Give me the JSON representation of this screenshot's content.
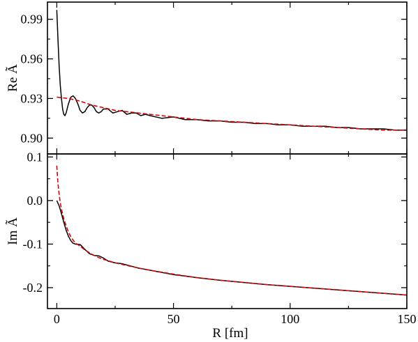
{
  "chart_data": [
    {
      "type": "line",
      "panel": "top",
      "xlabel": "",
      "ylabel": "Re Ã",
      "xlim": [
        -4,
        150
      ],
      "ylim": [
        0.888,
        1.003
      ],
      "yticks": [
        0.9,
        0.93,
        0.96,
        0.99
      ],
      "ytick_labels": [
        "0.90",
        "0.93",
        "0.96",
        "0.99"
      ],
      "grid": false,
      "series": [
        {
          "style": "solid",
          "color": "#000000",
          "x": [
            0.0,
            0.5,
            1.0,
            1.5,
            2.0,
            2.5,
            3.0,
            3.5,
            4.0,
            5.0,
            6.0,
            7.0,
            8.0,
            9.0,
            10.0,
            11.0,
            12.0,
            13.0,
            14.0,
            15.0,
            16.0,
            17.0,
            18.0,
            19.0,
            20.0,
            22.0,
            24.0,
            26.0,
            28.0,
            30.0,
            32.0,
            34.0,
            36.0,
            38.0,
            40.0,
            45.0,
            50.0,
            55.0,
            60.0,
            65.0,
            70.0,
            75.0,
            80.0,
            85.0,
            90.0,
            95.0,
            100.0,
            105.0,
            110.0,
            115.0,
            120.0,
            125.0,
            130.0,
            135.0,
            140.0,
            145.0,
            150.0
          ],
          "y": [
            0.997,
            0.975,
            0.955,
            0.94,
            0.93,
            0.922,
            0.918,
            0.917,
            0.919,
            0.926,
            0.931,
            0.932,
            0.93,
            0.926,
            0.921,
            0.919,
            0.92,
            0.923,
            0.925,
            0.925,
            0.923,
            0.92,
            0.919,
            0.92,
            0.922,
            0.922,
            0.919,
            0.92,
            0.921,
            0.918,
            0.919,
            0.919,
            0.917,
            0.918,
            0.917,
            0.915,
            0.916,
            0.914,
            0.914,
            0.913,
            0.913,
            0.912,
            0.912,
            0.911,
            0.911,
            0.91,
            0.91,
            0.909,
            0.909,
            0.909,
            0.908,
            0.908,
            0.907,
            0.907,
            0.907,
            0.906,
            0.906
          ]
        },
        {
          "style": "dashed",
          "color": "#dd0000",
          "x": [
            0.0,
            5.0,
            10.0,
            15.0,
            20.0,
            25.0,
            30.0,
            40.0,
            50.0,
            60.0,
            70.0,
            80.0,
            90.0,
            100.0,
            110.0,
            120.0,
            130.0,
            140.0,
            150.0
          ],
          "y": [
            0.931,
            0.93,
            0.928,
            0.925,
            0.923,
            0.921,
            0.92,
            0.918,
            0.916,
            0.914,
            0.913,
            0.912,
            0.911,
            0.91,
            0.909,
            0.908,
            0.907,
            0.906,
            0.906
          ]
        }
      ]
    },
    {
      "type": "line",
      "panel": "bottom",
      "xlabel": "R [fm]",
      "ylabel": "Im Ã",
      "xlim": [
        -4,
        150
      ],
      "ylim": [
        -0.248,
        0.107
      ],
      "yticks": [
        0.1,
        0.0,
        -0.1,
        -0.2
      ],
      "ytick_labels": [
        "0.1",
        "0.0",
        "-0.1",
        "-0.2"
      ],
      "xticks": [
        0,
        50,
        100,
        150
      ],
      "xtick_labels": [
        "0",
        "50",
        "100",
        "150"
      ],
      "grid": false,
      "series": [
        {
          "style": "solid",
          "color": "#000000",
          "x": [
            0.0,
            1.0,
            2.0,
            3.0,
            4.0,
            5.0,
            6.0,
            7.0,
            8.0,
            10.0,
            12.0,
            14.0,
            16.0,
            18.0,
            20.0,
            22.0,
            25.0,
            28.0,
            30.0,
            35.0,
            40.0,
            45.0,
            50.0,
            60.0,
            70.0,
            80.0,
            90.0,
            100.0,
            110.0,
            120.0,
            130.0,
            140.0,
            150.0
          ],
          "y": [
            0.0,
            -0.012,
            -0.03,
            -0.05,
            -0.068,
            -0.082,
            -0.092,
            -0.098,
            -0.1,
            -0.101,
            -0.112,
            -0.122,
            -0.126,
            -0.127,
            -0.132,
            -0.139,
            -0.143,
            -0.145,
            -0.148,
            -0.155,
            -0.16,
            -0.165,
            -0.17,
            -0.177,
            -0.183,
            -0.188,
            -0.193,
            -0.197,
            -0.201,
            -0.205,
            -0.209,
            -0.213,
            -0.217
          ]
        },
        {
          "style": "dashed",
          "color": "#dd0000",
          "x": [
            0.0,
            0.5,
            1.0,
            1.5,
            2.0,
            3.0,
            4.0,
            5.0,
            6.0,
            7.0,
            8.0,
            10.0,
            12.0,
            14.0,
            16.0,
            18.0,
            20.0,
            25.0,
            30.0,
            35.0,
            40.0,
            50.0,
            60.0,
            70.0,
            80.0,
            90.0,
            100.0,
            110.0,
            120.0,
            130.0,
            140.0,
            150.0
          ],
          "y": [
            0.08,
            0.04,
            0.015,
            -0.005,
            -0.02,
            -0.042,
            -0.058,
            -0.072,
            -0.083,
            -0.091,
            -0.097,
            -0.105,
            -0.113,
            -0.12,
            -0.126,
            -0.131,
            -0.135,
            -0.143,
            -0.149,
            -0.155,
            -0.16,
            -0.169,
            -0.177,
            -0.183,
            -0.188,
            -0.193,
            -0.197,
            -0.201,
            -0.205,
            -0.209,
            -0.213,
            -0.217
          ]
        }
      ]
    }
  ]
}
